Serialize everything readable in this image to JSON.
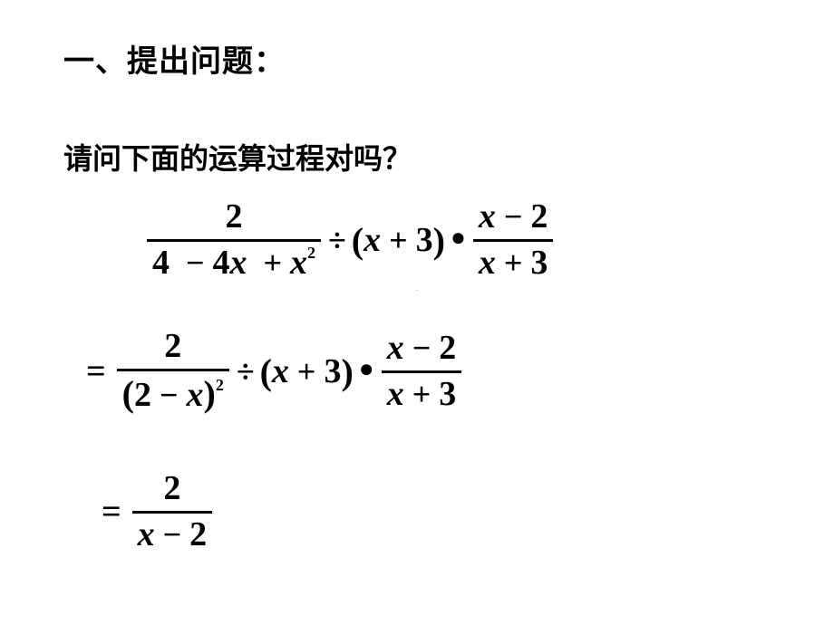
{
  "heading": "一、提出问题：",
  "subheading": "请问下面的运算过程对吗？",
  "page_marker": ".",
  "math": {
    "line1": {
      "frac1_num": "2",
      "frac1_den_a": "4",
      "frac1_den_b": "4",
      "frac1_den_var": "x",
      "frac1_den_c_var": "x",
      "frac1_den_sup": "2",
      "middle_var": "x",
      "middle_num": "3",
      "frac2_num_var": "x",
      "frac2_num_n": "2",
      "frac2_den_var": "x",
      "frac2_den_n": "3"
    },
    "line2": {
      "frac1_num": "2",
      "frac1_den_a": "2",
      "frac1_den_var": "x",
      "frac1_den_sup": "2",
      "middle_var": "x",
      "middle_num": "3",
      "frac2_num_var": "x",
      "frac2_num_n": "2",
      "frac2_den_var": "x",
      "frac2_den_n": "3"
    },
    "line3": {
      "frac_num": "2",
      "frac_den_var": "x",
      "frac_den_n": "2"
    }
  },
  "style": {
    "text_color": "#000000",
    "bg_color": "#ffffff",
    "marker_color": "#bfbfbf",
    "heading_fontsize": 34,
    "sub_fontsize": 32,
    "math_fontsize": 38,
    "bar_thickness": 3
  }
}
